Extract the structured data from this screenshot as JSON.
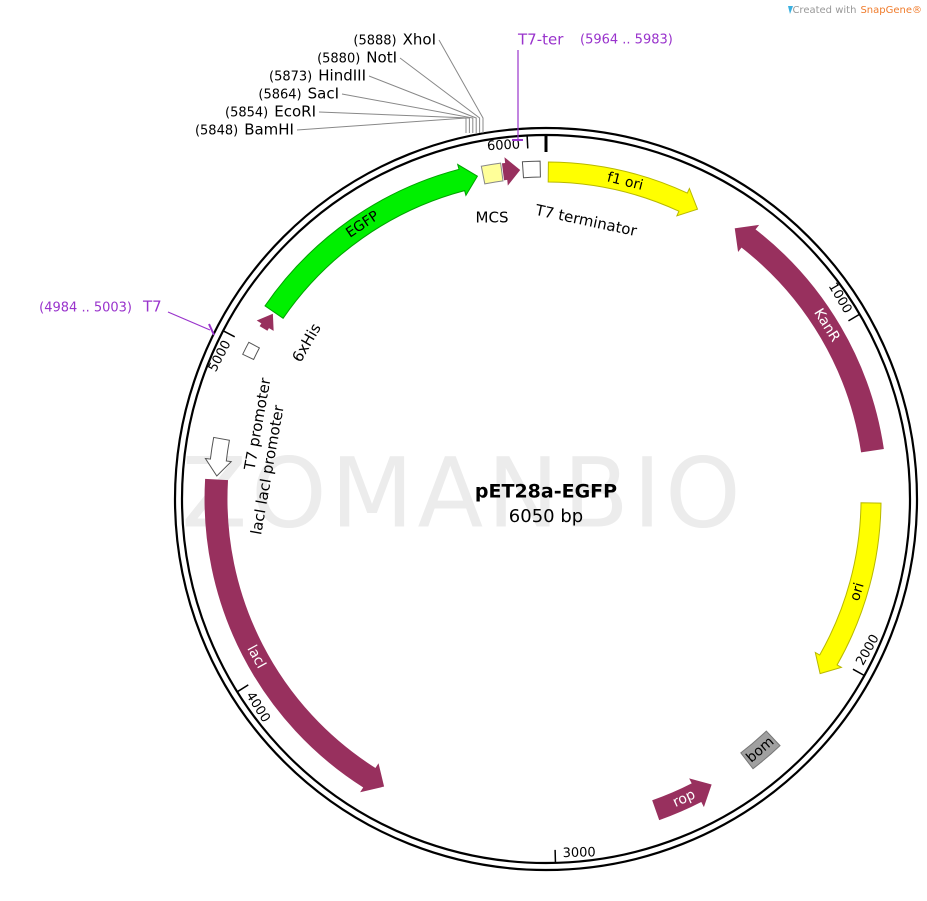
{
  "header": {
    "created_with": "Created with",
    "brand": "SnapGene®"
  },
  "map": {
    "name": "pET28a-EGFP",
    "length": "6050 bp",
    "watermark": "ZOMANBIO"
  },
  "sites": [
    {
      "position": "(5888)",
      "name": "XhoI"
    },
    {
      "position": "(5880)",
      "name": "NotI"
    },
    {
      "position": "(5873)",
      "name": "HindIII"
    },
    {
      "position": "(5864)",
      "name": "SacI"
    },
    {
      "position": "(5854)",
      "name": "EcoRI"
    },
    {
      "position": "(5848)",
      "name": "BamHI"
    }
  ],
  "primers": [
    {
      "name": "T7-ter",
      "range": "(5964 .. 5983)"
    },
    {
      "name": "T7",
      "range": "(4984 .. 5003)"
    }
  ],
  "ticks": [
    "1000",
    "2000",
    "3000",
    "4000",
    "5000",
    "6000"
  ],
  "features": [
    {
      "label": "f1 ori"
    },
    {
      "label": "KanR"
    },
    {
      "label": "ori"
    },
    {
      "label": "bom"
    },
    {
      "label": "rop"
    },
    {
      "label": "lacI"
    },
    {
      "label": "lacI lacI promoter"
    },
    {
      "label": "T7 promoter"
    },
    {
      "label": "6xHis"
    },
    {
      "label": "EGFP"
    },
    {
      "label": "MCS"
    },
    {
      "label": "T7 terminator"
    }
  ]
}
